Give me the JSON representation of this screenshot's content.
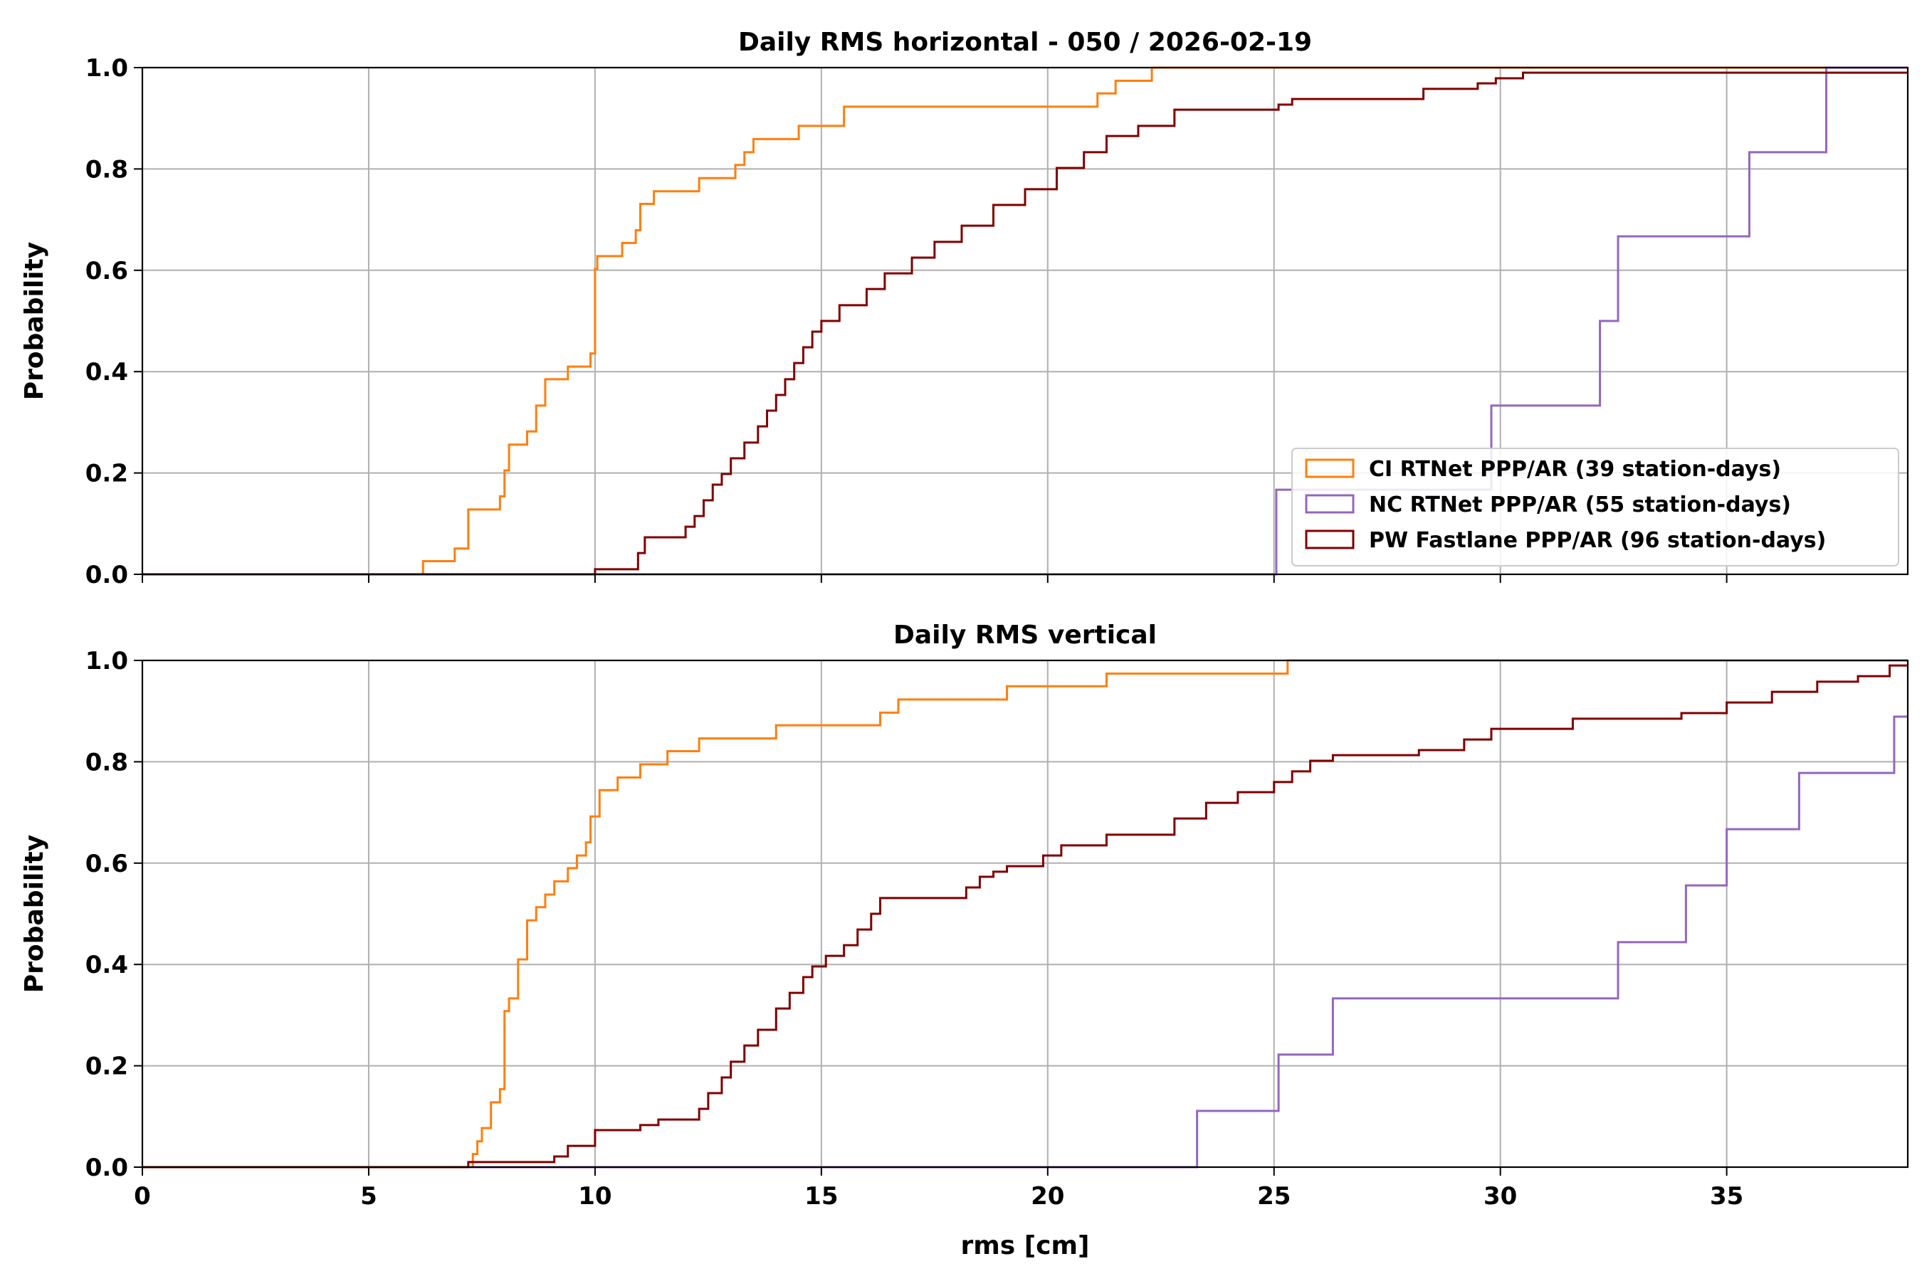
{
  "chart_data": [
    {
      "type": "line",
      "step": true,
      "title": "Daily RMS horizontal - 050  / 2026-02-19",
      "xlabel": "",
      "ylabel": "Probability",
      "xlim": [
        0,
        39
      ],
      "ylim": [
        0,
        1
      ],
      "xticks": [
        0,
        5,
        10,
        15,
        20,
        25,
        30,
        35
      ],
      "yticks": [
        "0.0",
        "0.2",
        "0.4",
        "0.6",
        "0.8",
        "1.0"
      ],
      "grid": true,
      "legend_location": "lower right",
      "series": [
        {
          "name": "CI RTNet PPP/AR (39 station-days)",
          "color": "#ff7f0e",
          "x": [
            0,
            6.2,
            6.9,
            7.2,
            7.9,
            8.0,
            8.1,
            8.5,
            8.7,
            8.9,
            9.4,
            9.9,
            10.0,
            10.05,
            10.6,
            10.9,
            11.0,
            11.3,
            12.3,
            13.1,
            13.3,
            13.5,
            14.5,
            15.5,
            21.1,
            21.5,
            22.3,
            39
          ],
          "y": [
            0,
            0.026,
            0.051,
            0.128,
            0.154,
            0.205,
            0.256,
            0.282,
            0.333,
            0.385,
            0.41,
            0.436,
            0.603,
            0.628,
            0.654,
            0.679,
            0.731,
            0.756,
            0.782,
            0.808,
            0.833,
            0.859,
            0.885,
            0.923,
            0.949,
            0.974,
            1.0,
            1.0
          ]
        },
        {
          "name": "NC RTNet PPP/AR (55 station-days)",
          "color": "#9467bd",
          "x": [
            0,
            25.05,
            26.3,
            29.8,
            32.2,
            32.6,
            35.5,
            37.2,
            39
          ],
          "y": [
            0,
            0.167,
            0.167,
            0.333,
            0.5,
            0.667,
            0.833,
            1.0,
            1.0
          ]
        },
        {
          "name": "PW Fastlane PPP/AR (96 station-days)",
          "color": "#800000",
          "x": [
            0,
            10.0,
            10.95,
            11.1,
            12.0,
            12.2,
            12.4,
            12.6,
            12.8,
            13.0,
            13.3,
            13.6,
            13.8,
            14.0,
            14.2,
            14.4,
            14.6,
            14.8,
            15.0,
            15.4,
            16.0,
            16.4,
            17.0,
            17.5,
            18.1,
            18.8,
            19.5,
            20.2,
            20.8,
            21.3,
            22.0,
            22.8,
            25.1,
            25.4,
            28.3,
            29.5,
            29.9,
            30.5,
            31.4,
            36.5,
            37.5,
            39
          ],
          "y": [
            0,
            0.01,
            0.042,
            0.073,
            0.094,
            0.115,
            0.146,
            0.177,
            0.198,
            0.229,
            0.26,
            0.292,
            0.323,
            0.354,
            0.385,
            0.417,
            0.448,
            0.479,
            0.5,
            0.531,
            0.563,
            0.594,
            0.625,
            0.656,
            0.688,
            0.729,
            0.76,
            0.802,
            0.833,
            0.865,
            0.885,
            0.917,
            0.927,
            0.938,
            0.958,
            0.969,
            0.979,
            0.99,
            0.99,
            0.99,
            0.99,
            0.99
          ]
        }
      ]
    },
    {
      "type": "line",
      "step": true,
      "title": "Daily RMS vertical",
      "xlabel": "rms [cm]",
      "ylabel": "Probability",
      "xlim": [
        0,
        39
      ],
      "ylim": [
        0,
        1
      ],
      "xticks": [
        0,
        5,
        10,
        15,
        20,
        25,
        30,
        35
      ],
      "yticks": [
        "0.0",
        "0.2",
        "0.4",
        "0.6",
        "0.8",
        "1.0"
      ],
      "grid": true,
      "series": [
        {
          "name": "CI RTNet PPP/AR",
          "color": "#ff7f0e",
          "x": [
            0,
            7.3,
            7.4,
            7.5,
            7.7,
            7.9,
            8.0,
            8.1,
            8.3,
            8.5,
            8.7,
            8.9,
            9.1,
            9.4,
            9.6,
            9.8,
            9.9,
            10.1,
            10.5,
            11.0,
            11.6,
            12.3,
            14.0,
            16.3,
            16.7,
            19.1,
            21.3,
            25.3,
            39
          ],
          "y": [
            0,
            0.026,
            0.051,
            0.077,
            0.128,
            0.154,
            0.308,
            0.333,
            0.41,
            0.487,
            0.513,
            0.538,
            0.564,
            0.59,
            0.615,
            0.641,
            0.692,
            0.744,
            0.769,
            0.795,
            0.821,
            0.846,
            0.872,
            0.897,
            0.923,
            0.949,
            0.974,
            1.0,
            1.0
          ]
        },
        {
          "name": "NC RTNet PPP/AR",
          "color": "#9467bd",
          "x": [
            0,
            23.3,
            25.1,
            26.3,
            32.6,
            34.1,
            35.0,
            36.6,
            38.7,
            39
          ],
          "y": [
            0,
            0.111,
            0.222,
            0.333,
            0.444,
            0.556,
            0.667,
            0.778,
            0.889,
            0.889
          ]
        },
        {
          "name": "PW Fastlane PPP/AR",
          "color": "#800000",
          "x": [
            0,
            7.2,
            9.1,
            9.4,
            10.0,
            11.0,
            11.4,
            12.3,
            12.5,
            12.8,
            13.0,
            13.3,
            13.6,
            14.0,
            14.3,
            14.6,
            14.8,
            15.1,
            15.5,
            15.8,
            16.1,
            16.3,
            17.0,
            18.2,
            18.5,
            18.8,
            19.1,
            19.9,
            20.3,
            21.3,
            22.8,
            23.5,
            24.2,
            25.0,
            25.4,
            25.8,
            26.3,
            28.2,
            29.2,
            29.8,
            31.6,
            34.0,
            35.0,
            36.0,
            37.0,
            37.9,
            38.6,
            39
          ],
          "y": [
            0,
            0.01,
            0.021,
            0.042,
            0.073,
            0.083,
            0.094,
            0.115,
            0.146,
            0.177,
            0.208,
            0.24,
            0.271,
            0.313,
            0.344,
            0.375,
            0.396,
            0.417,
            0.438,
            0.469,
            0.5,
            0.531,
            0.531,
            0.552,
            0.573,
            0.583,
            0.594,
            0.615,
            0.635,
            0.656,
            0.688,
            0.719,
            0.74,
            0.76,
            0.781,
            0.802,
            0.813,
            0.823,
            0.844,
            0.865,
            0.885,
            0.896,
            0.917,
            0.938,
            0.958,
            0.969,
            0.99,
            0.99
          ]
        }
      ]
    }
  ]
}
